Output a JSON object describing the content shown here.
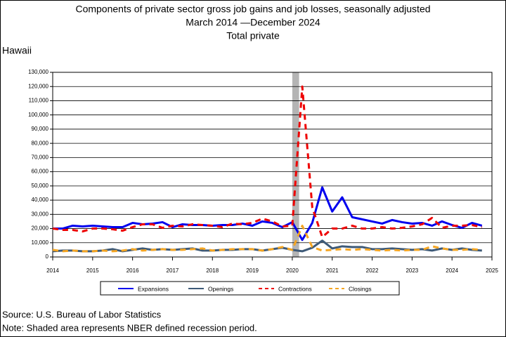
{
  "chart_data": {
    "type": "line",
    "title": "Components of private sector gross job gains and job losses, seasonally adjusted",
    "subtitle": "March 2014 —December 2024",
    "subtitle2": "Total private",
    "region": "Hawaii",
    "source": "Source: U.S. Bureau of Labor Statistics",
    "note": "Note: Shaded area represents NBER defined recession period.",
    "x": [
      2014,
      2014.25,
      2014.5,
      2014.75,
      2015,
      2015.25,
      2015.5,
      2015.75,
      2016,
      2016.25,
      2016.5,
      2016.75,
      2017,
      2017.25,
      2017.5,
      2017.75,
      2018,
      2018.25,
      2018.5,
      2018.75,
      2019,
      2019.25,
      2019.5,
      2019.75,
      2020,
      2020.25,
      2020.5,
      2020.75,
      2021,
      2021.25,
      2021.5,
      2021.75,
      2022,
      2022.25,
      2022.5,
      2022.75,
      2023,
      2023.25,
      2023.5,
      2023.75,
      2024,
      2024.25,
      2024.5,
      2024.75
    ],
    "series": [
      {
        "name": "Expansions",
        "color": "#0000ee",
        "dash": false,
        "values": [
          20000,
          20000,
          22000,
          21500,
          22000,
          21500,
          21000,
          21000,
          24000,
          23000,
          23500,
          24500,
          21000,
          23000,
          22500,
          22500,
          22000,
          22500,
          22500,
          23500,
          22000,
          25000,
          24000,
          21000,
          24500,
          12000,
          24000,
          49000,
          32000,
          42000,
          28000,
          26500,
          25000,
          23500,
          26000,
          24500,
          23500,
          24000,
          22000,
          25000,
          22500,
          20500,
          24000,
          22000
        ]
      },
      {
        "name": "Openings",
        "color": "#3e5a78",
        "dash": false,
        "values": [
          4000,
          4500,
          4500,
          4000,
          4000,
          4500,
          5500,
          4000,
          5000,
          6000,
          5000,
          5500,
          5000,
          5500,
          6000,
          4500,
          4500,
          5000,
          5000,
          5500,
          5500,
          4500,
          5500,
          6500,
          5000,
          4000,
          6500,
          11500,
          6000,
          7500,
          7000,
          7000,
          5500,
          5500,
          6000,
          5500,
          5000,
          5500,
          4500,
          6000,
          5000,
          6000,
          5000,
          4500
        ]
      },
      {
        "name": "Contractions",
        "color": "#ee0000",
        "dash": true,
        "values": [
          20000,
          19000,
          19000,
          18000,
          20000,
          20000,
          19500,
          18500,
          21000,
          23000,
          23000,
          20500,
          22000,
          21500,
          23000,
          22500,
          22000,
          21000,
          23500,
          23000,
          24000,
          27000,
          25000,
          21500,
          22000,
          120000,
          35000,
          14000,
          20000,
          20000,
          22000,
          20000,
          20000,
          21000,
          20000,
          20500,
          21500,
          23000,
          27500,
          20500,
          22000,
          22000,
          22500,
          21000
        ]
      },
      {
        "name": "Closings",
        "color": "#f5a623",
        "dash": true,
        "values": [
          5000,
          4000,
          4500,
          4000,
          4000,
          4500,
          4000,
          4500,
          5500,
          4500,
          5000,
          5500,
          5000,
          5000,
          5500,
          6000,
          4500,
          5000,
          5500,
          5500,
          5500,
          4500,
          5500,
          7000,
          5000,
          22000,
          7000,
          4500,
          5000,
          5500,
          5000,
          5500,
          5000,
          4500,
          5000,
          4500,
          5000,
          5000,
          7500,
          6000,
          5000,
          5000,
          5500,
          5000
        ]
      }
    ],
    "shaded_region": [
      2020,
      2020.17
    ],
    "shade_color": "#b4b4b4",
    "xlim": [
      2014,
      2025
    ],
    "xticks": [
      2014,
      2015,
      2016,
      2017,
      2018,
      2019,
      2020,
      2021,
      2022,
      2023,
      2024,
      2025
    ],
    "ylim": [
      0,
      130000
    ],
    "yticks": [
      0,
      {
        "value": 10000,
        "label": "10,000"
      },
      {
        "value": 20000,
        "label": "20,000"
      },
      {
        "value": 30000,
        "label": "30,000"
      },
      {
        "value": 40000,
        "label": "40,000"
      },
      {
        "value": 50000,
        "label": "50,000"
      },
      {
        "value": 60000,
        "label": "60,000"
      },
      {
        "value": 70000,
        "label": "70,000"
      },
      {
        "value": 80000,
        "label": "80,000"
      },
      {
        "value": 90000,
        "label": "90,000"
      },
      {
        "value": 100000,
        "label": "100,000"
      },
      {
        "value": 110000,
        "label": "110,000"
      },
      {
        "value": 120000,
        "label": "120,000"
      },
      {
        "value": 130000,
        "label": "130,000"
      }
    ],
    "grid": true
  }
}
